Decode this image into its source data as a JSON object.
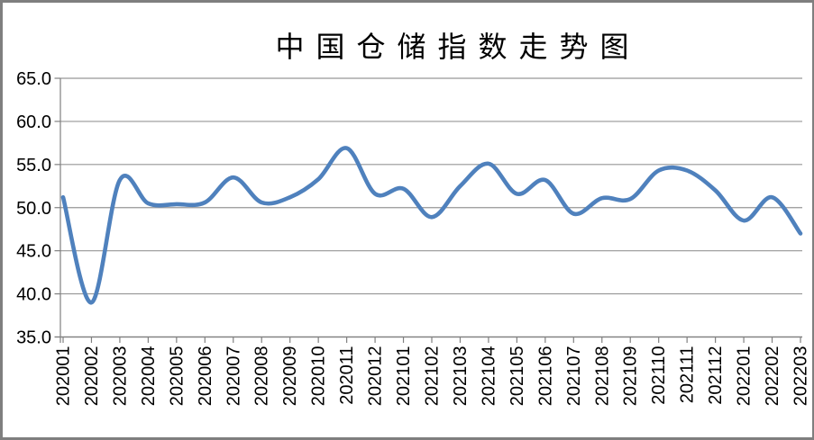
{
  "chart_data": {
    "type": "line",
    "title": "中国仓储指数走势图",
    "categories": [
      "202001",
      "202002",
      "202003",
      "202004",
      "202005",
      "202006",
      "202007",
      "202008",
      "202009",
      "202010",
      "202011",
      "202012",
      "202101",
      "202102",
      "202103",
      "202104",
      "202105",
      "202106",
      "202107",
      "202108",
      "202109",
      "202110",
      "202111",
      "202112",
      "202201",
      "202202",
      "202203"
    ],
    "values": [
      51.2,
      39.0,
      53.2,
      50.5,
      50.4,
      50.6,
      53.5,
      50.6,
      51.2,
      53.3,
      56.9,
      51.6,
      52.2,
      48.9,
      52.5,
      55.1,
      51.6,
      53.2,
      49.3,
      51.1,
      51.0,
      54.3,
      54.3,
      52.0,
      48.5,
      51.2,
      47.0
    ],
    "xlabel": "",
    "ylabel": "",
    "ylim": [
      35.0,
      65.0
    ],
    "ytick_labels": [
      "65.0",
      "60.0",
      "55.0",
      "50.0",
      "45.0",
      "40.0",
      "35.0"
    ],
    "legend": "none",
    "grid": "horizontal-major",
    "smooth_line": true,
    "x_labels_rotated_degrees": -90,
    "colors": {
      "line": "#4F81BD",
      "grid": "#969696",
      "axis": "#808080",
      "text": "#000000",
      "background": "#FFFFFF",
      "frame_border": "#7F7F7F"
    }
  }
}
